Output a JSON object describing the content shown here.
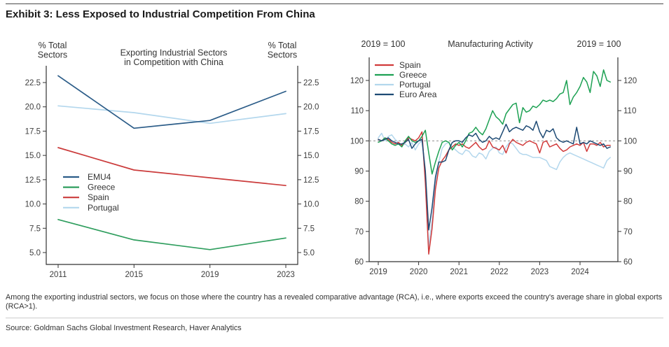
{
  "exhibit": {
    "title": "Exhibit 3: Less Exposed to Industrial Competition From China",
    "footnote": "Among the exporting industrial sectors, we focus on those where the country has a revealed comparative advantage (RCA), i.e., where exports exceed the country's average share in global exports (RCA>1).",
    "source": "Source: Goldman Sachs Global Investment Research, Haver Analytics"
  },
  "chart_data": [
    {
      "type": "line",
      "title": "Exporting Industrial Sectors in Competition with China",
      "title_lines": [
        "Exporting Industrial Sectors",
        "in Competition with China"
      ],
      "left_axis_label_lines": [
        "% Total",
        "Sectors"
      ],
      "right_axis_label_lines": [
        "% Total",
        "Sectors"
      ],
      "x_ticks": [
        "2011",
        "2015",
        "2019",
        "2023"
      ],
      "x": [
        2011,
        2015,
        2019,
        2023
      ],
      "y_ticks": [
        5.0,
        7.5,
        10.0,
        12.5,
        15.0,
        17.5,
        20.0,
        22.5
      ],
      "y_tick_decimals": 1,
      "ylim": [
        4.0,
        24.5
      ],
      "legend_position": "inside-left-middle",
      "grid": false,
      "series": [
        {
          "name": "EMU4",
          "color": "#2b5c88",
          "values": [
            23.2,
            17.8,
            18.6,
            21.6
          ]
        },
        {
          "name": "Greece",
          "color": "#2f9e5e",
          "values": [
            8.4,
            6.3,
            5.3,
            6.5
          ]
        },
        {
          "name": "Spain",
          "color": "#cb3b3b",
          "values": [
            15.8,
            13.5,
            12.7,
            11.9
          ]
        },
        {
          "name": "Portugal",
          "color": "#b3d7ed",
          "values": [
            20.1,
            19.4,
            18.3,
            19.3
          ]
        }
      ]
    },
    {
      "type": "line",
      "title": "Manufacturing Activity",
      "title_lines": [
        "Manufacturing Activity"
      ],
      "left_axis_label_lines": [
        "2019 = 100"
      ],
      "right_axis_label_lines": [
        "2019 = 100"
      ],
      "x_ticks": [
        "2019",
        "2020",
        "2021",
        "2022",
        "2023",
        "2024"
      ],
      "x_start": 2019.0,
      "x_frequency": "monthly",
      "n_points": 70,
      "y_ticks": [
        60,
        70,
        80,
        90,
        100,
        110,
        120
      ],
      "y_tick_decimals": 0,
      "ylim": [
        60,
        127
      ],
      "ref_line": 100,
      "legend_position": "inside-top-left",
      "grid": false,
      "series": [
        {
          "name": "Spain",
          "color": "#d13a3a",
          "values": [
            100.5,
            100,
            101,
            100.5,
            99.5,
            99,
            99.5,
            98.5,
            99.5,
            101,
            100.5,
            100,
            101,
            103,
            86,
            62.5,
            71,
            84,
            91,
            93.5,
            95,
            97,
            98,
            99,
            98.5,
            99,
            98,
            97.5,
            98.5,
            99.5,
            98,
            97,
            97.5,
            100,
            98,
            97.5,
            97,
            98.5,
            96,
            99,
            100.5,
            99.5,
            99,
            98.5,
            99.5,
            100,
            99.5,
            99,
            96,
            99.5,
            100,
            98,
            98.5,
            99,
            97.5,
            96.5,
            97,
            98,
            98.5,
            99,
            98.5,
            99.5,
            96.5,
            99,
            99,
            98.5,
            99.5,
            98,
            98.5,
            98.5
          ]
        },
        {
          "name": "Greece",
          "color": "#1da153",
          "values": [
            99.5,
            100,
            101,
            100,
            99,
            98.5,
            99,
            98,
            100,
            101.5,
            100,
            99.5,
            100,
            101.5,
            103.5,
            96,
            89,
            93,
            96.5,
            99.5,
            100,
            99.5,
            97,
            98.5,
            99.5,
            98,
            100,
            102.5,
            103,
            104.5,
            103,
            102,
            104,
            107,
            110,
            108,
            107,
            105.5,
            109,
            110.5,
            112,
            112.5,
            106,
            111,
            109.5,
            110,
            111.5,
            111,
            112,
            113.5,
            113,
            113.5,
            113,
            114,
            115.5,
            116,
            120,
            112,
            114.5,
            116,
            118,
            121,
            119.5,
            116,
            123,
            121.5,
            118,
            123.5,
            120,
            119.5
          ]
        },
        {
          "name": "Portugal",
          "color": "#b3d7ed",
          "values": [
            101,
            102.5,
            100,
            101.5,
            102,
            100.5,
            99.5,
            98.5,
            99,
            98,
            99.5,
            97,
            99,
            100,
            88,
            65,
            74,
            86,
            93,
            97.5,
            99,
            99.5,
            98,
            97,
            96,
            95.5,
            97,
            96.5,
            95,
            94.5,
            96,
            95.5,
            94,
            96.5,
            97.5,
            98,
            96,
            95.5,
            98,
            99.5,
            99,
            97.5,
            96,
            95.5,
            95.5,
            95,
            94.5,
            94.5,
            94.5,
            94,
            93.5,
            91.5,
            91,
            90.5,
            93,
            94.5,
            95.5,
            96,
            95.5,
            95,
            94.5,
            94,
            93.5,
            93,
            92.5,
            92,
            91.5,
            91,
            93.5,
            94.5
          ]
        },
        {
          "name": "Euro Area",
          "color": "#1d4a74",
          "values": [
            100.5,
            100,
            100.5,
            101,
            100,
            99.5,
            99,
            99,
            99.5,
            100.5,
            97.5,
            99,
            100,
            100.5,
            90,
            70.5,
            78,
            88,
            93,
            93,
            93.5,
            97,
            99.5,
            100,
            100,
            99.5,
            101,
            102,
            101.5,
            102.5,
            100.5,
            99.5,
            100,
            101.5,
            100.5,
            101,
            100.5,
            103,
            105.5,
            103,
            104,
            104.5,
            104,
            103.5,
            105,
            104.5,
            103.5,
            106.5,
            103,
            101,
            103.5,
            103,
            104,
            101,
            100,
            99.5,
            100,
            99.5,
            99,
            104.5,
            99,
            99.5,
            99,
            100,
            99.5,
            99,
            98.5,
            99,
            97.5,
            98
          ]
        }
      ]
    }
  ]
}
